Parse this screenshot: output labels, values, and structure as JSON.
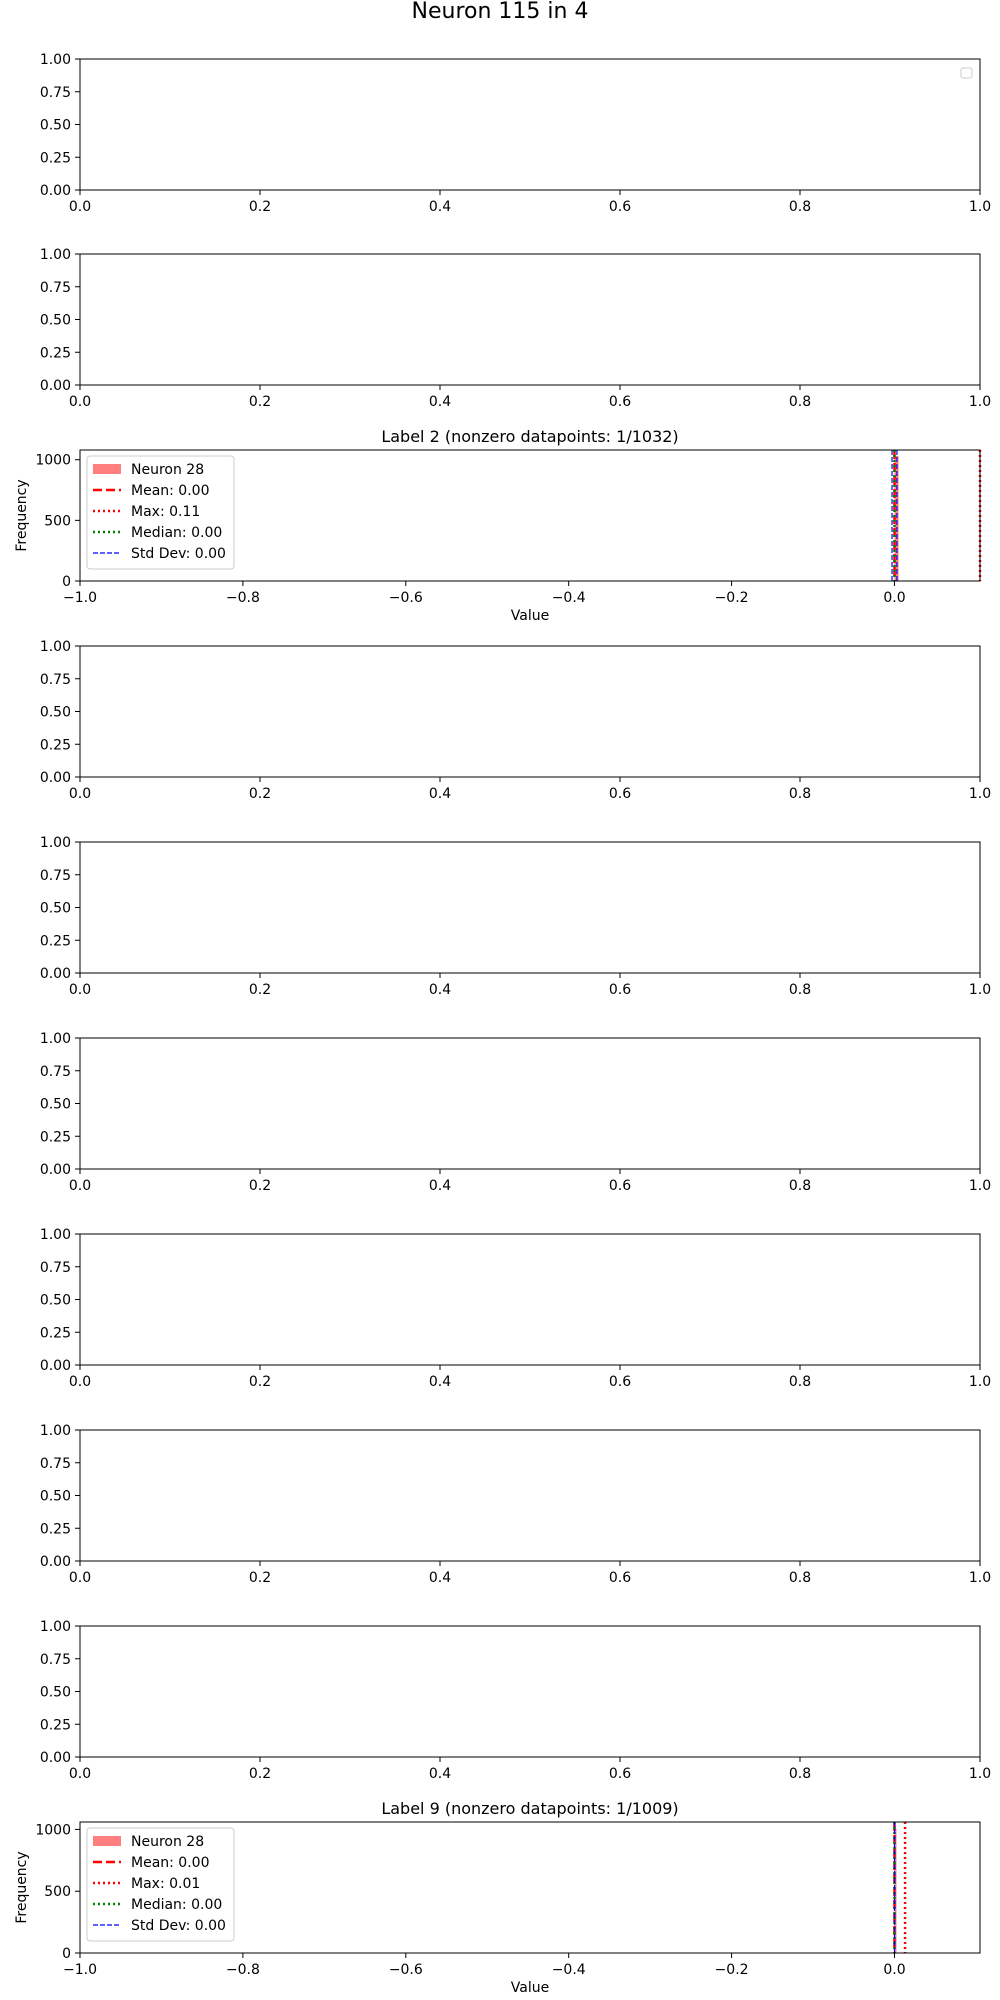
{
  "figure": {
    "title": "Neuron 115 in 4"
  },
  "chart_data": [
    {
      "type": "bar",
      "title": "",
      "xlabel": "",
      "ylabel": "",
      "xlim": [
        0,
        1
      ],
      "ylim": [
        0,
        1
      ],
      "xticks": [
        "0.0",
        "0.2",
        "0.4",
        "0.6",
        "0.8",
        "1.0"
      ],
      "yticks": [
        "0.00",
        "0.25",
        "0.50",
        "0.75",
        "1.00"
      ],
      "series": [],
      "legend": "top-right (empty)",
      "grid": false
    },
    {
      "type": "bar",
      "title": "",
      "xlabel": "",
      "ylabel": "",
      "xlim": [
        0,
        1
      ],
      "ylim": [
        0,
        1
      ],
      "xticks": [
        "0.0",
        "0.2",
        "0.4",
        "0.6",
        "0.8",
        "1.0"
      ],
      "yticks": [
        "0.00",
        "0.25",
        "0.50",
        "0.75",
        "1.00"
      ],
      "series": [],
      "grid": false
    },
    {
      "type": "bar",
      "title": "Label 2 (nonzero datapoints: 1/1032)",
      "xlabel": "Value",
      "ylabel": "Frequency",
      "xlim": [
        -1.0,
        0.105
      ],
      "ylim": [
        0,
        1080
      ],
      "xticks": [
        "−1.0",
        "−0.8",
        "−0.6",
        "−0.4",
        "−0.2",
        "0.0"
      ],
      "xtick_values": [
        -1.0,
        -0.8,
        -0.6,
        -0.4,
        -0.2,
        0.0
      ],
      "yticks": [
        "0",
        "500",
        "1000"
      ],
      "ytick_values": [
        0,
        500,
        1000
      ],
      "histogram": {
        "name": "Neuron 28",
        "color": "#ff7f7f",
        "bin_start": 0.0,
        "bin_end": 0.005,
        "count": 1031
      },
      "lines": [
        {
          "name": "Mean: 0.00",
          "value": 0.0,
          "color": "#ff0000",
          "style": "dashed"
        },
        {
          "name": "Max: 0.11",
          "value": 0.105,
          "color": "#ff0000",
          "style": "dotted"
        },
        {
          "name": "Median: 0.00",
          "value": 0.0,
          "color": "#008000",
          "style": "dotted"
        },
        {
          "name": "Std Dev: 0.00",
          "value": 0.003,
          "color": "#0000ff",
          "style": "dashed-thin",
          "pair": true
        }
      ],
      "legend": "upper-left",
      "grid": false
    },
    {
      "type": "bar",
      "title": "",
      "xlabel": "",
      "ylabel": "",
      "xlim": [
        0,
        1
      ],
      "ylim": [
        0,
        1
      ],
      "xticks": [
        "0.0",
        "0.2",
        "0.4",
        "0.6",
        "0.8",
        "1.0"
      ],
      "yticks": [
        "0.00",
        "0.25",
        "0.50",
        "0.75",
        "1.00"
      ],
      "series": [],
      "grid": false
    },
    {
      "type": "bar",
      "title": "",
      "xlabel": "",
      "ylabel": "",
      "xlim": [
        0,
        1
      ],
      "ylim": [
        0,
        1
      ],
      "xticks": [
        "0.0",
        "0.2",
        "0.4",
        "0.6",
        "0.8",
        "1.0"
      ],
      "yticks": [
        "0.00",
        "0.25",
        "0.50",
        "0.75",
        "1.00"
      ],
      "series": [],
      "grid": false
    },
    {
      "type": "bar",
      "title": "",
      "xlabel": "",
      "ylabel": "",
      "xlim": [
        0,
        1
      ],
      "ylim": [
        0,
        1
      ],
      "xticks": [
        "0.0",
        "0.2",
        "0.4",
        "0.6",
        "0.8",
        "1.0"
      ],
      "yticks": [
        "0.00",
        "0.25",
        "0.50",
        "0.75",
        "1.00"
      ],
      "series": [],
      "grid": false
    },
    {
      "type": "bar",
      "title": "",
      "xlabel": "",
      "ylabel": "",
      "xlim": [
        0,
        1
      ],
      "ylim": [
        0,
        1
      ],
      "xticks": [
        "0.0",
        "0.2",
        "0.4",
        "0.6",
        "0.8",
        "1.0"
      ],
      "yticks": [
        "0.00",
        "0.25",
        "0.50",
        "0.75",
        "1.00"
      ],
      "series": [],
      "grid": false
    },
    {
      "type": "bar",
      "title": "",
      "xlabel": "",
      "ylabel": "",
      "xlim": [
        0,
        1
      ],
      "ylim": [
        0,
        1
      ],
      "xticks": [
        "0.0",
        "0.2",
        "0.4",
        "0.6",
        "0.8",
        "1.0"
      ],
      "yticks": [
        "0.00",
        "0.25",
        "0.50",
        "0.75",
        "1.00"
      ],
      "series": [],
      "grid": false
    },
    {
      "type": "bar",
      "title": "",
      "xlabel": "",
      "ylabel": "",
      "xlim": [
        0,
        1
      ],
      "ylim": [
        0,
        1
      ],
      "xticks": [
        "0.0",
        "0.2",
        "0.4",
        "0.6",
        "0.8",
        "1.0"
      ],
      "yticks": [
        "0.00",
        "0.25",
        "0.50",
        "0.75",
        "1.00"
      ],
      "series": [],
      "grid": false
    },
    {
      "type": "bar",
      "title": "Label 9 (nonzero datapoints: 1/1009)",
      "xlabel": "Value",
      "ylabel": "Frequency",
      "xlim": [
        -1.0,
        0.105
      ],
      "ylim": [
        0,
        1060
      ],
      "xticks": [
        "−1.0",
        "−0.8",
        "−0.6",
        "−0.4",
        "−0.2",
        "0.0"
      ],
      "xtick_values": [
        -1.0,
        -0.8,
        -0.6,
        -0.4,
        -0.2,
        0.0
      ],
      "yticks": [
        "0",
        "500",
        "1000"
      ],
      "ytick_values": [
        0,
        500,
        1000
      ],
      "histogram": {
        "name": "Neuron 28",
        "color": "#ff7f7f",
        "bin_start": 0.0,
        "bin_end": 0.0005,
        "count": 1008
      },
      "lines": [
        {
          "name": "Mean: 0.00",
          "value": 0.0,
          "color": "#ff0000",
          "style": "dashed"
        },
        {
          "name": "Max: 0.01",
          "value": 0.013,
          "color": "#ff0000",
          "style": "dotted"
        },
        {
          "name": "Median: 0.00",
          "value": 0.0,
          "color": "#008000",
          "style": "dotted"
        },
        {
          "name": "Std Dev: 0.00",
          "value": 0.0,
          "color": "#0000ff",
          "style": "dashed-thin",
          "pair": false
        }
      ],
      "legend": "upper-left",
      "grid": false
    }
  ]
}
